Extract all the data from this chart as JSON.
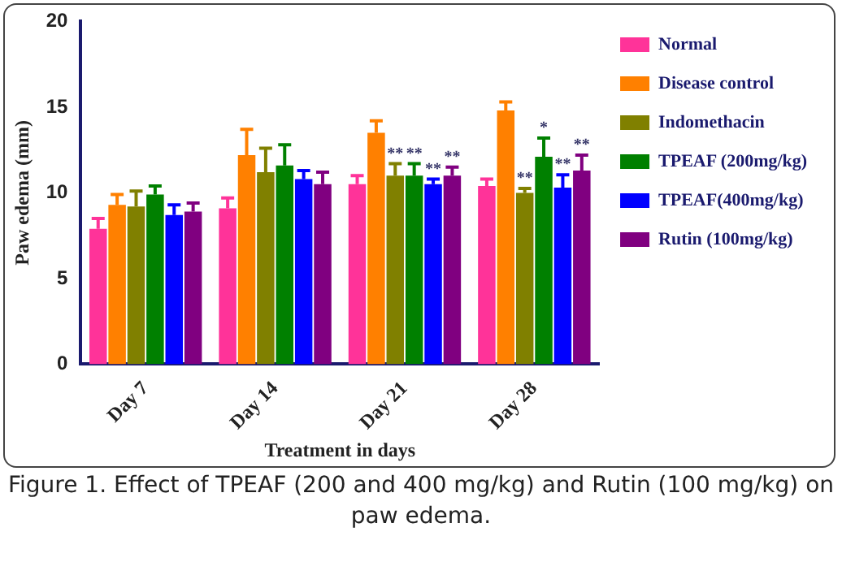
{
  "chart_data": {
    "type": "bar",
    "xlabel": "Treatment in days",
    "ylabel": "Paw edema (mm)",
    "categories": [
      "Day 7",
      "Day 14",
      "Day 21",
      "Day 28"
    ],
    "ylim": [
      0,
      20
    ],
    "yticks": [
      0,
      5,
      10,
      15,
      20
    ],
    "grid": false,
    "legend": "right",
    "series": [
      {
        "name": "Normal",
        "color": "#ff3399",
        "values": [
          7.9,
          9.1,
          10.5,
          10.4
        ],
        "errors": [
          0.6,
          0.6,
          0.5,
          0.4
        ]
      },
      {
        "name": "Disease control",
        "color": "#ff8000",
        "values": [
          9.3,
          12.2,
          13.5,
          14.8
        ],
        "errors": [
          0.6,
          1.5,
          0.7,
          0.5
        ]
      },
      {
        "name": "Indomethacin",
        "color": "#808000",
        "values": [
          9.2,
          11.2,
          11.0,
          10.0
        ],
        "errors": [
          0.9,
          1.4,
          0.7,
          0.25
        ],
        "value_labels": [
          null,
          null,
          "**",
          "**"
        ]
      },
      {
        "name": "TPEAF (200mg/kg)",
        "color": "#008000",
        "values": [
          9.9,
          11.6,
          11.0,
          12.1
        ],
        "errors": [
          0.5,
          1.2,
          0.7,
          1.1
        ],
        "value_labels": [
          null,
          null,
          "**",
          "*"
        ]
      },
      {
        "name": "TPEAF(400mg/kg)",
        "color": "#0000ff",
        "values": [
          8.7,
          10.8,
          10.5,
          10.3
        ],
        "errors": [
          0.6,
          0.5,
          0.3,
          0.75
        ],
        "value_labels": [
          null,
          null,
          "**",
          "**"
        ]
      },
      {
        "name": "Rutin (100mg/kg)",
        "color": "#800080",
        "values": [
          8.9,
          10.5,
          11.0,
          11.3
        ],
        "errors": [
          0.5,
          0.7,
          0.5,
          0.9
        ],
        "value_labels": [
          null,
          null,
          "**",
          "**"
        ]
      }
    ],
    "annotations": [
      "Figure 1. Effect of TPEAF (200 and 400 mg/kg) and Rutin (100 mg/kg) on paw edema."
    ]
  }
}
